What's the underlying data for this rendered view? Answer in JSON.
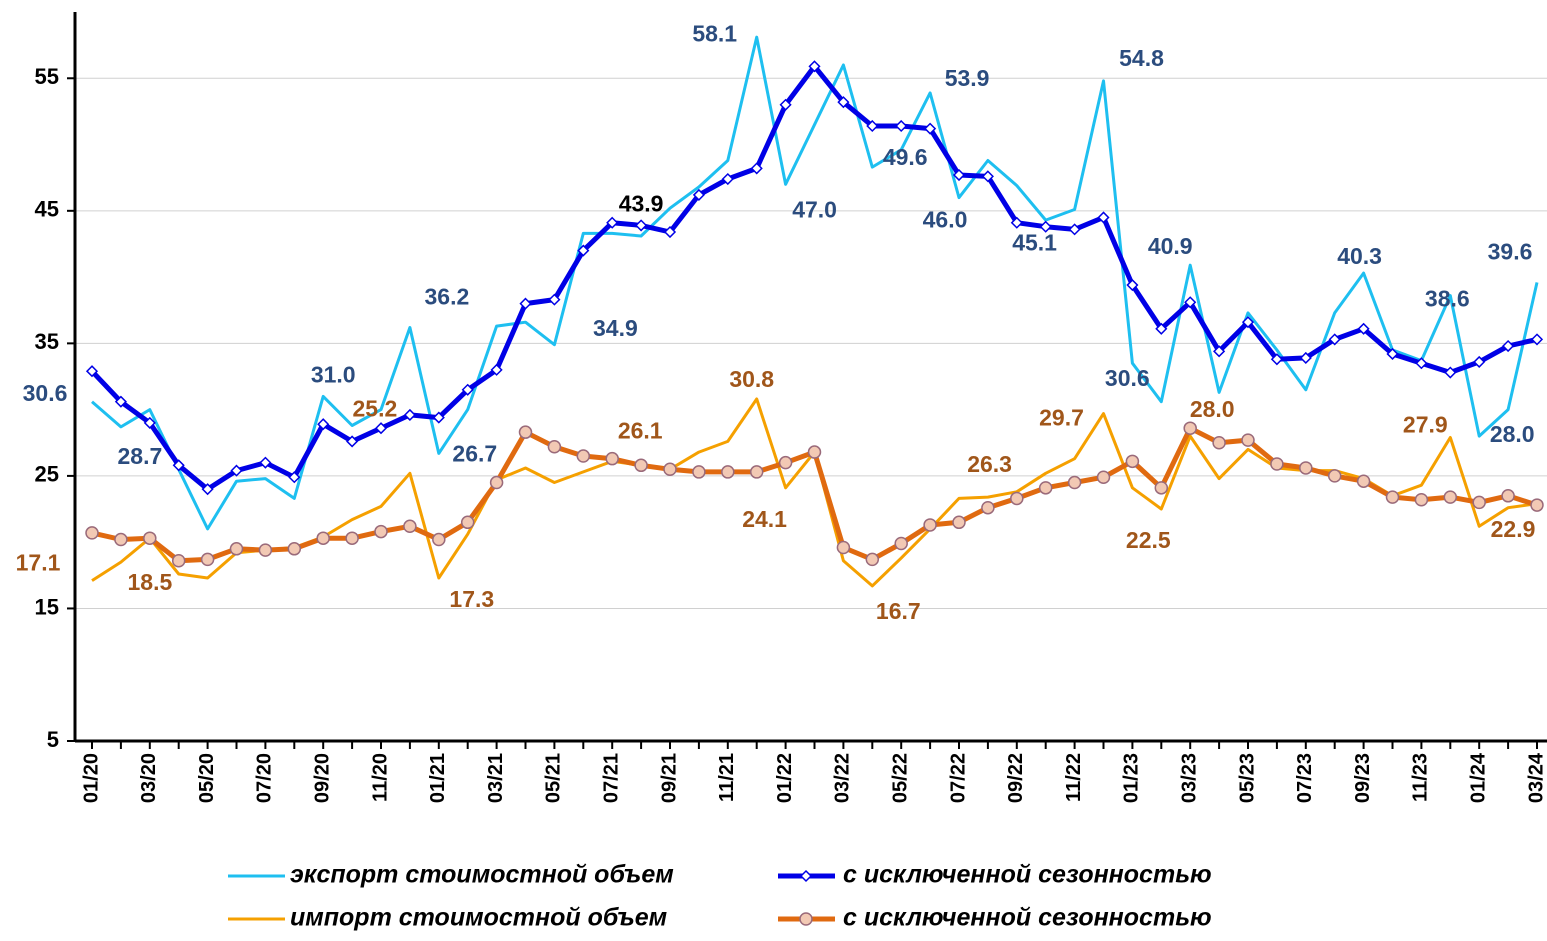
{
  "chart_data": {
    "type": "line",
    "categories": [
      "01/20",
      null,
      "03/20",
      null,
      "05/20",
      null,
      "07/20",
      null,
      "09/20",
      null,
      "11/20",
      null,
      "01/21",
      null,
      "03/21",
      null,
      "05/21",
      null,
      "07/21",
      null,
      "09/21",
      null,
      "11/21",
      null,
      "01/22",
      null,
      "03/22",
      null,
      "05/22",
      null,
      "07/22",
      null,
      "09/22",
      null,
      "11/22",
      null,
      "01/23",
      null,
      "03/23",
      null,
      "05/23",
      null,
      "07/23",
      null,
      "09/23",
      null,
      "11/23",
      null,
      "01/24",
      null,
      "03/24"
    ],
    "ylim": [
      5,
      60
    ],
    "yticks": [
      5,
      15,
      25,
      35,
      45,
      55
    ],
    "grid": true,
    "series": [
      {
        "name": "экспорт стоимостной объем",
        "color": "#1ebff0",
        "label_color": "#2b4c7e",
        "values": [
          30.6,
          28.7,
          30.0,
          25.5,
          21.0,
          24.6,
          24.8,
          23.3,
          31.0,
          28.8,
          30.0,
          36.2,
          26.7,
          30.0,
          36.3,
          36.6,
          34.9,
          43.3,
          43.3,
          43.1,
          45.2,
          46.8,
          48.8,
          58.1,
          47.0,
          51.5,
          56.0,
          48.3,
          49.6,
          53.9,
          46.0,
          48.8,
          46.9,
          44.3,
          45.1,
          54.8,
          33.5,
          30.6,
          40.9,
          31.3,
          37.3,
          34.5,
          31.5,
          37.3,
          40.3,
          34.5,
          33.7,
          38.6,
          28.0,
          30.0,
          39.6
        ],
        "value_labels": [
          "30.6",
          "28.7",
          null,
          null,
          null,
          null,
          null,
          null,
          "31.0",
          null,
          null,
          "36.2",
          "26.7",
          null,
          null,
          null,
          "34.9",
          null,
          null,
          null,
          null,
          null,
          null,
          "58.1",
          "47.0",
          null,
          null,
          null,
          "49.6",
          "53.9",
          "46.0",
          null,
          null,
          null,
          "45.1",
          "54.8",
          null,
          "30.6",
          "40.9",
          null,
          null,
          null,
          null,
          null,
          "40.3",
          null,
          null,
          "38.6",
          "28.0",
          null,
          "39.6"
        ]
      },
      {
        "name": "с исключенной сезонностью",
        "color": "#0000e6",
        "marker": "diamond",
        "label_color": "#000000",
        "values": [
          32.9,
          30.6,
          29.0,
          25.8,
          24.0,
          25.4,
          26.0,
          24.9,
          28.9,
          27.6,
          28.6,
          29.6,
          29.4,
          31.5,
          33.0,
          38.0,
          38.3,
          42.0,
          44.1,
          43.9,
          43.4,
          46.2,
          47.4,
          48.2,
          53.0,
          55.9,
          53.2,
          51.4,
          51.4,
          51.2,
          47.7,
          47.6,
          44.1,
          43.8,
          43.6,
          44.5,
          39.4,
          36.1,
          38.1,
          34.4,
          36.6,
          33.8,
          33.9,
          35.3,
          36.1,
          34.2,
          33.5,
          32.8,
          33.6,
          34.8,
          35.3
        ],
        "value_labels": [
          null,
          null,
          null,
          null,
          null,
          null,
          null,
          null,
          null,
          null,
          null,
          null,
          null,
          null,
          null,
          null,
          null,
          null,
          null,
          "43.9",
          null,
          null,
          null,
          null,
          null,
          null,
          null,
          null,
          null,
          null,
          null,
          null,
          null,
          null,
          null,
          null,
          null,
          null,
          null,
          null,
          null,
          null,
          null,
          null,
          null,
          null,
          null,
          null,
          null,
          null,
          null
        ]
      },
      {
        "name": "импорт стоимостной объем",
        "color": "#f5a000",
        "label_color": "#a0561a",
        "values": [
          17.1,
          18.5,
          20.3,
          17.6,
          17.3,
          19.2,
          19.4,
          19.6,
          20.4,
          21.7,
          22.7,
          25.2,
          17.3,
          20.6,
          24.7,
          25.6,
          24.5,
          25.3,
          26.1,
          25.8,
          25.5,
          26.8,
          27.6,
          30.8,
          24.1,
          26.8,
          18.6,
          16.7,
          18.8,
          21.0,
          23.3,
          23.4,
          23.8,
          25.2,
          26.3,
          29.7,
          24.1,
          22.5,
          28.0,
          24.8,
          27.0,
          25.6,
          25.4,
          25.4,
          24.8,
          23.5,
          24.3,
          27.9,
          21.2,
          22.6,
          22.9
        ],
        "value_labels": [
          "17.1",
          "18.5",
          null,
          null,
          null,
          null,
          null,
          null,
          null,
          null,
          null,
          "25.2",
          "17.3",
          null,
          null,
          null,
          null,
          null,
          "26.1",
          null,
          null,
          null,
          null,
          "30.8",
          "24.1",
          null,
          null,
          "16.7",
          null,
          null,
          null,
          null,
          null,
          null,
          "26.3",
          "29.7",
          null,
          "22.5",
          "28.0",
          null,
          null,
          null,
          null,
          null,
          null,
          null,
          null,
          "27.9",
          null,
          null,
          "22.9"
        ]
      },
      {
        "name": "с исключенной сезонностью",
        "color": "#e06a10",
        "marker": "circle",
        "values": [
          20.7,
          20.2,
          20.3,
          18.6,
          18.7,
          19.5,
          19.4,
          19.5,
          20.3,
          20.3,
          20.8,
          21.2,
          20.2,
          21.5,
          24.5,
          28.3,
          27.2,
          26.5,
          26.3,
          25.8,
          25.5,
          25.3,
          25.3,
          25.3,
          26.0,
          26.8,
          19.6,
          18.7,
          19.9,
          21.3,
          21.5,
          22.6,
          23.3,
          24.1,
          24.5,
          24.9,
          26.1,
          24.1,
          28.6,
          27.5,
          27.7,
          25.9,
          25.6,
          25.0,
          24.6,
          23.4,
          23.2,
          23.4,
          23.0,
          23.5,
          22.8
        ]
      }
    ]
  }
}
